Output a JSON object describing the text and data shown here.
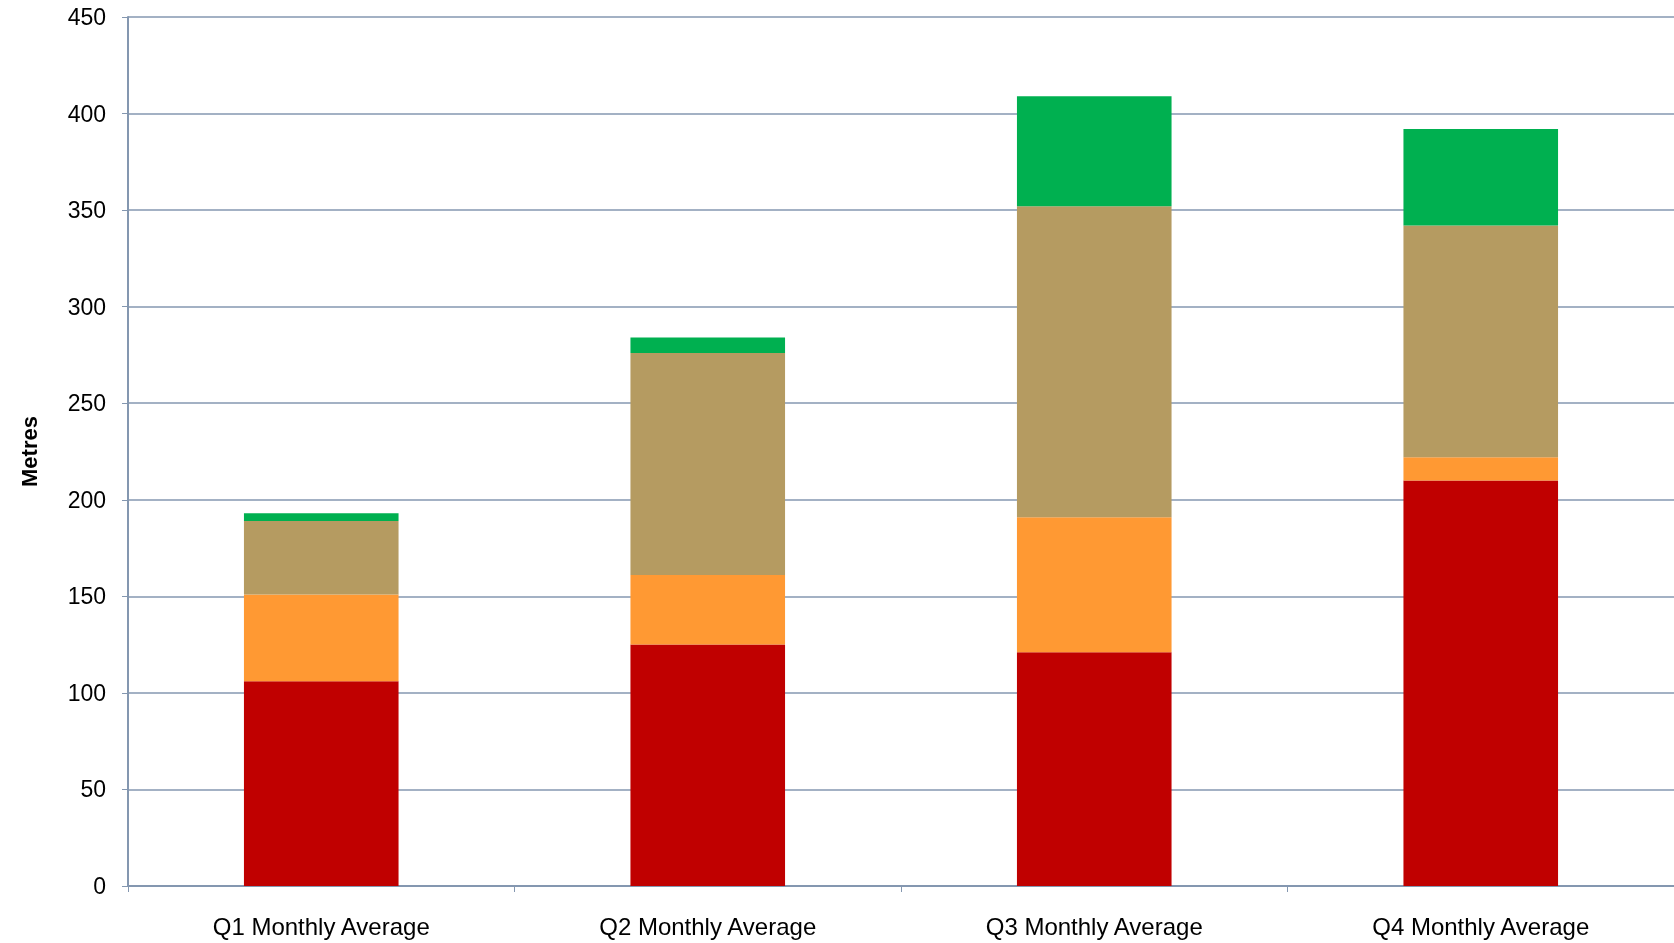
{
  "chart_data": {
    "type": "bar",
    "ylabel": "Metres",
    "categories": [
      "Q1 Monthly Average",
      "Q2 Monthly Average",
      "Q3 Monthly Average",
      "Q4 Monthly Average"
    ],
    "stacked": true,
    "series": [
      {
        "color": "#c00000",
        "values": [
          106,
          125,
          121,
          210
        ]
      },
      {
        "color": "#ff9933",
        "values": [
          45,
          36,
          70,
          12
        ]
      },
      {
        "color": "#b59b61",
        "values": [
          38,
          115,
          161,
          120
        ]
      },
      {
        "color": "#00b050",
        "values": [
          4,
          8,
          57,
          50
        ]
      }
    ],
    "ylim": [
      0,
      450
    ],
    "yticks": [
      0,
      50,
      100,
      150,
      200,
      250,
      300,
      350,
      400,
      450
    ],
    "grid": "y"
  }
}
